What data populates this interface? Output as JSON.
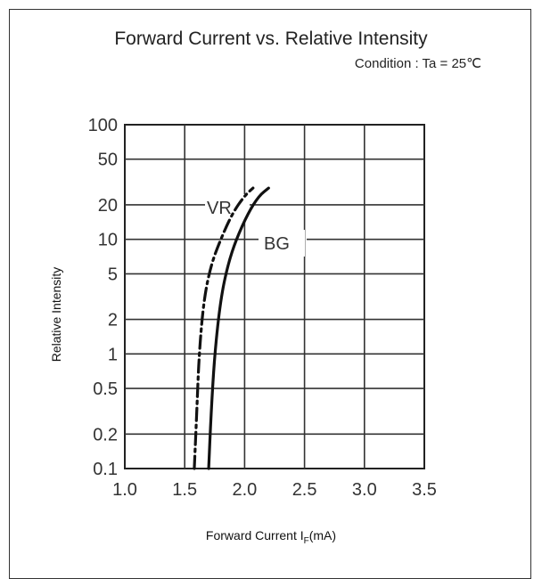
{
  "chart_data": {
    "type": "line",
    "title": "Forward Current vs. Relative Intensity",
    "subtitle": "Condition : Ta = 25℃",
    "xlabel_main": "Forward Current I",
    "xlabel_sub": "F",
    "xlabel_unit": "(mA)",
    "ylabel": "Relative Intensity",
    "y_scale": "log",
    "xlim": [
      1.0,
      3.5
    ],
    "ylim": [
      0.1,
      100
    ],
    "x_ticks": [
      "1.0",
      "1.5",
      "2.0",
      "2.5",
      "3.0",
      "3.5"
    ],
    "y_ticks": [
      "100",
      "50",
      "20",
      "10",
      "5",
      "2",
      "1",
      "0.5",
      "0.2",
      "0.1"
    ],
    "grid": true,
    "series": [
      {
        "name": "VR",
        "line_style": "dash-dot",
        "color": "#111111",
        "points": [
          [
            1.58,
            0.1
          ],
          [
            1.6,
            0.3
          ],
          [
            1.62,
            1
          ],
          [
            1.66,
            3
          ],
          [
            1.72,
            6
          ],
          [
            1.8,
            10
          ],
          [
            1.9,
            17
          ],
          [
            2.0,
            24
          ],
          [
            2.07,
            28
          ]
        ]
      },
      {
        "name": "BG",
        "line_style": "solid",
        "color": "#111111",
        "points": [
          [
            1.7,
            0.1
          ],
          [
            1.72,
            0.3
          ],
          [
            1.75,
            1
          ],
          [
            1.8,
            3
          ],
          [
            1.86,
            6
          ],
          [
            1.93,
            10
          ],
          [
            2.03,
            17
          ],
          [
            2.12,
            24
          ],
          [
            2.2,
            28
          ]
        ]
      }
    ]
  }
}
